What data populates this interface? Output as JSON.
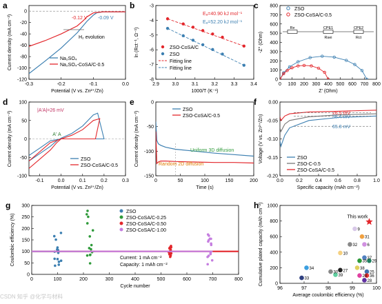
{
  "figure": {
    "panels": [
      "a",
      "b",
      "c",
      "d",
      "e",
      "f",
      "g",
      "h"
    ],
    "watermark": "CSDN 知乎 @化学与材料"
  },
  "colors": {
    "blue": "#3c7fb1",
    "red": "#e3262b",
    "green": "#2e9a3a",
    "purple": "#c57ee0",
    "gray": "#777777"
  },
  "chart_data": [
    {
      "panel": "a",
      "type": "line",
      "xlabel": "Potential (V vs. Zn²⁺/Zn)",
      "ylabel": "Current density (mA cm⁻²)",
      "xlim": [
        -0.3,
        0.0
      ],
      "ylim": [
        -120,
        10
      ],
      "xticks": [
        "-0.3",
        "-0.2",
        "-0.1",
        "0.0"
      ],
      "yticks": [
        "0",
        "-20",
        "-40",
        "-60",
        "-80",
        "-100",
        "-120"
      ],
      "annotations": [
        "-0.12 V",
        "-0.09 V",
        "H₂ evolution"
      ],
      "legend": [
        "Na₂SO₄",
        "Na₂SO₄-CoSA/C-0.5"
      ],
      "series": [
        {
          "name": "Na₂SO₄",
          "color": "blue",
          "x": [
            -0.3,
            -0.25,
            -0.2,
            -0.15,
            -0.12,
            -0.1,
            -0.09,
            -0.07,
            -0.04,
            0.0
          ],
          "y": [
            -110,
            -88,
            -65,
            -38,
            -18,
            -7,
            -3,
            -1,
            -1,
            -1
          ]
        },
        {
          "name": "Na₂SO₄-CoSA/C-0.5",
          "color": "red",
          "x": [
            -0.3,
            -0.25,
            -0.2,
            -0.15,
            -0.13,
            -0.12,
            -0.1,
            -0.07,
            -0.04,
            0.0
          ],
          "y": [
            -62,
            -52,
            -40,
            -26,
            -16,
            -10,
            -3,
            -1,
            -1,
            -1
          ]
        }
      ]
    },
    {
      "panel": "b",
      "type": "scatter",
      "xlabel": "1000/T (K⁻¹)",
      "ylabel": "ln (Rct⁻¹, Ω⁻¹)",
      "xlim": [
        2.9,
        3.4
      ],
      "ylim": [
        -8,
        -3
      ],
      "xticks": [
        "2.9",
        "3.0",
        "3.1",
        "3.2",
        "3.3",
        "3.4"
      ],
      "yticks": [
        "-3",
        "-4",
        "-5",
        "-6",
        "-7",
        "-8"
      ],
      "annotations": [
        "Eₐ=40.90 kJ mol⁻¹",
        "Eₐ=52.20 kJ mol⁻¹"
      ],
      "legend": [
        "ZSO-CoSA/C",
        "ZSO",
        "Fitting line",
        "Fitting line"
      ],
      "series": [
        {
          "name": "ZSO-CoSA/C",
          "color": "red",
          "x": [
            2.96,
            3.04,
            3.09,
            3.14,
            3.19,
            3.24,
            3.35
          ],
          "y": [
            -3.9,
            -4.25,
            -4.47,
            -4.7,
            -4.93,
            -5.15,
            -5.75
          ]
        },
        {
          "name": "ZSO",
          "color": "blue",
          "x": [
            2.96,
            3.04,
            3.09,
            3.14,
            3.19,
            3.24,
            3.35
          ],
          "y": [
            -4.55,
            -5.05,
            -5.35,
            -5.66,
            -5.98,
            -6.29,
            -7.05
          ]
        }
      ]
    },
    {
      "panel": "c",
      "type": "line",
      "xlabel": "Z' (Ohm)",
      "ylabel": "-Z'' (Ohm)",
      "xlim": [
        0,
        800
      ],
      "ylim": [
        0,
        800
      ],
      "xticks": [
        "0",
        "100",
        "200",
        "300",
        "400",
        "500",
        "600",
        "700",
        "800"
      ],
      "yticks": [
        "0",
        "100",
        "200",
        "300",
        "400",
        "500",
        "600",
        "700",
        "800"
      ],
      "legend": [
        "ZSO",
        "ZSO-CoSA/C-0.5"
      ],
      "circuit_labels": [
        "Re",
        "CPE1",
        "Rsei",
        "CPE2",
        "Rct"
      ],
      "series": [
        {
          "name": "ZSO",
          "color": "blue",
          "x": [
            0,
            30,
            80,
            150,
            250,
            350,
            450,
            550,
            620,
            680,
            720
          ],
          "y": [
            0,
            70,
            135,
            190,
            235,
            250,
            240,
            205,
            160,
            95,
            0
          ]
        },
        {
          "name": "ZSO-CoSA/C-0.5",
          "color": "red",
          "x": [
            0,
            30,
            60,
            100,
            150,
            200,
            260,
            320,
            370,
            400
          ],
          "y": [
            0,
            60,
            95,
            125,
            145,
            150,
            145,
            120,
            75,
            0
          ]
        }
      ]
    },
    {
      "panel": "d",
      "type": "line",
      "xlabel": "Potential (V vs. Zn²⁺/Zn)",
      "ylabel": "Current density (mA cm⁻²)",
      "xlim": [
        -0.15,
        0.3
      ],
      "ylim": [
        -100,
        100
      ],
      "xticks": [
        "-0.1",
        "0.0",
        "0.1",
        "0.2",
        "0.3"
      ],
      "yticks": [
        "100",
        "50",
        "0",
        "-50",
        "-100"
      ],
      "annotations": [
        "|A'A|=26 mV",
        "A'",
        "A"
      ],
      "legend": [
        "ZSO",
        "ZSO-CoSA/C-0.5"
      ],
      "series": [
        {
          "name": "ZSO",
          "color": "blue",
          "x": [
            -0.15,
            -0.1,
            -0.05,
            -0.02,
            0.0,
            0.05,
            0.1,
            0.15,
            0.17,
            0.2,
            0.17,
            0.1,
            0.0,
            -0.05,
            -0.1,
            -0.15
          ],
          "y": [
            -60,
            -40,
            -20,
            -5,
            2,
            15,
            35,
            65,
            70,
            0,
            0,
            0,
            0,
            -5,
            -25,
            -45
          ]
        },
        {
          "name": "ZSO-CoSA/C-0.5",
          "color": "red",
          "x": [
            -0.15,
            -0.1,
            -0.05,
            -0.02,
            0.0,
            0.05,
            0.1,
            0.15,
            0.18,
            0.16,
            0.1,
            0.0,
            -0.05,
            -0.1,
            -0.15
          ],
          "y": [
            -80,
            -55,
            -30,
            -10,
            0,
            10,
            25,
            50,
            55,
            0,
            0,
            0,
            -10,
            -35,
            -60
          ]
        }
      ]
    },
    {
      "panel": "e",
      "type": "line",
      "xlabel": "Time (s)",
      "ylabel": "Current density (mA cm⁻²)",
      "xlim": [
        0,
        200
      ],
      "ylim": [
        -150,
        0
      ],
      "xticks": [
        "0",
        "50",
        "100",
        "150",
        "200"
      ],
      "yticks": [
        "0",
        "-50",
        "-100",
        "-150"
      ],
      "annotations": [
        "Uniform 3D diffusion",
        "Random 2D diffusion"
      ],
      "legend": [
        "ZSO",
        "ZSO-CoSA/C-0.5"
      ],
      "series": [
        {
          "name": "ZSO",
          "color": "blue",
          "x": [
            0,
            2,
            5,
            10,
            20,
            40,
            80,
            120,
            160,
            200
          ],
          "y": [
            -40,
            -78,
            -85,
            -88,
            -92,
            -96,
            -100,
            -104,
            -107,
            -110
          ]
        },
        {
          "name": "ZSO-CoSA/C-0.5",
          "color": "red",
          "x": [
            0,
            2,
            5,
            10,
            20,
            40,
            80,
            120,
            160,
            200
          ],
          "y": [
            -60,
            -125,
            -122,
            -120,
            -120,
            -121,
            -122,
            -123,
            -123,
            -124
          ]
        }
      ]
    },
    {
      "panel": "f",
      "type": "line",
      "xlabel": "Specific capacity (mAh cm⁻²)",
      "ylabel": "Voltage (V vs. Zn²⁺/Zn)",
      "xlim": [
        0,
        1.0
      ],
      "ylim": [
        -0.2,
        0.0
      ],
      "xticks": [
        "0.0",
        "0.2",
        "0.4",
        "0.6",
        "0.8",
        "1.0"
      ],
      "yticks": [
        "0.00",
        "-0.05",
        "-0.10",
        "-0.15",
        "-0.20"
      ],
      "annotations": [
        "28.5 mV",
        "38.4 mV",
        "65.8 mV"
      ],
      "legend": [
        "ZSO",
        "ZSO-C-0.5",
        "ZSO-CoSA/C-0.5"
      ],
      "series": [
        {
          "name": "ZSO",
          "color": "blue",
          "x": [
            0.0,
            0.01,
            0.05,
            0.1,
            0.3,
            0.6,
            1.0
          ],
          "y": [
            -0.105,
            -0.12,
            -0.09,
            -0.07,
            -0.05,
            -0.042,
            -0.038
          ]
        },
        {
          "name": "ZSO-C-0.5",
          "color": "gray",
          "x": [
            0.0,
            0.01,
            0.05,
            0.1,
            0.3,
            0.6,
            1.0
          ],
          "y": [
            -0.07,
            -0.08,
            -0.06,
            -0.05,
            -0.04,
            -0.035,
            -0.032
          ]
        },
        {
          "name": "ZSO-CoSA/C-0.5",
          "color": "red",
          "x": [
            0.0,
            0.01,
            0.05,
            0.1,
            0.3,
            0.6,
            1.0
          ],
          "y": [
            -0.04,
            -0.05,
            -0.038,
            -0.032,
            -0.027,
            -0.025,
            -0.022
          ]
        }
      ]
    },
    {
      "panel": "g",
      "type": "scatter",
      "xlabel": "Cycle number",
      "ylabel": "Coulombic efficiency (%)",
      "xlim": [
        0,
        800
      ],
      "ylim": [
        0,
        300
      ],
      "xticks": [
        "0",
        "100",
        "200",
        "300",
        "400",
        "500",
        "600",
        "700",
        "800"
      ],
      "yticks": [
        "0",
        "50",
        "100",
        "150",
        "200",
        "250",
        "300"
      ],
      "annotations": [
        "Current: 1 mA cm⁻²",
        "Capacity: 1 mAh cm⁻²"
      ],
      "legend": [
        "ZSO",
        "ZSO-CoSA/C-0.25",
        "ZSO-CoSA/C-0.50",
        "ZSO-CoSA/C-1.00"
      ],
      "series": [
        {
          "name": "ZSO",
          "color": "blue",
          "end_cycle": 110,
          "baseline": 100,
          "scatter_region": [
            85,
            115
          ],
          "scatter_range": [
            30,
            185
          ]
        },
        {
          "name": "ZSO-CoSA/C-0.25",
          "color": "green",
          "end_cycle": 245,
          "baseline": 100,
          "scatter_region": [
            210,
            245
          ],
          "scatter_range": [
            25,
            280
          ]
        },
        {
          "name": "ZSO-CoSA/C-0.50",
          "color": "red",
          "end_cycle": 800,
          "baseline": 100,
          "scatter_region": [
            530,
            540
          ],
          "scatter_range": [
            75,
            125
          ]
        },
        {
          "name": "ZSO-CoSA/C-1.00",
          "color": "purple",
          "end_cycle": 700,
          "baseline": 100,
          "scatter_region": [
            680,
            700
          ],
          "scatter_range": [
            20,
            175
          ]
        }
      ]
    },
    {
      "panel": "h",
      "type": "scatter",
      "xlabel": "Average coulombic efficiency (%)",
      "ylabel": "Cumulative plated capacity (mAh cm⁻²)",
      "xlim": [
        96,
        100
      ],
      "ylim": [
        0,
        1000
      ],
      "xticks": [
        "96",
        "97",
        "98",
        "99",
        "100"
      ],
      "yticks": [
        "0",
        "200",
        "400",
        "600",
        "800",
        "1000"
      ],
      "annotations": [
        "This work"
      ],
      "points": [
        {
          "label": "This work",
          "x": 99.7,
          "y": 790,
          "color": "#e3262b",
          "star": true
        },
        {
          "label": "9",
          "x": 99.1,
          "y": 700,
          "color": "#d8c8e8"
        },
        {
          "label": "31",
          "x": 99.4,
          "y": 600,
          "color": "#f0a040"
        },
        {
          "label": "32",
          "x": 98.9,
          "y": 500,
          "color": "#888888"
        },
        {
          "label": "6",
          "x": 99.5,
          "y": 500,
          "color": "#d090e0"
        },
        {
          "label": "10",
          "x": 98.5,
          "y": 390,
          "color": "#f5d080"
        },
        {
          "label": "37",
          "x": 99.5,
          "y": 330,
          "color": "#5080c0"
        },
        {
          "label": "35",
          "x": 99.3,
          "y": 290,
          "color": "#2e9a3a"
        },
        {
          "label": "29",
          "x": 99.7,
          "y": 290,
          "color": "#208060"
        },
        {
          "label": "34",
          "x": 97.1,
          "y": 200,
          "color": "#3c9fe0"
        },
        {
          "label": "38",
          "x": 99.2,
          "y": 200,
          "color": "#e0d060"
        },
        {
          "label": "30",
          "x": 98.1,
          "y": 150,
          "color": "#888888"
        },
        {
          "label": "27",
          "x": 98.5,
          "y": 170,
          "color": "#222222"
        },
        {
          "label": "25",
          "x": 99.6,
          "y": 150,
          "color": "#4070b0"
        },
        {
          "label": "39",
          "x": 98.3,
          "y": 110,
          "color": "#60d0a0"
        },
        {
          "label": "20",
          "x": 99.3,
          "y": 100,
          "color": "#e040a0"
        },
        {
          "label": "36",
          "x": 99.6,
          "y": 100,
          "color": "#e03030"
        },
        {
          "label": "33",
          "x": 96.9,
          "y": 70,
          "color": "#304080"
        },
        {
          "label": "28",
          "x": 99.5,
          "y": 40,
          "color": "#6030a0"
        }
      ]
    }
  ]
}
